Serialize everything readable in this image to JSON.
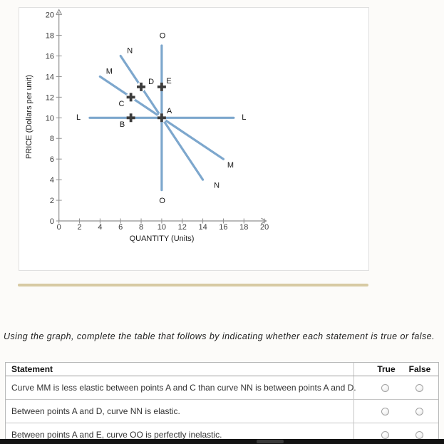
{
  "instruction": "Using the graph, complete the table that follows by indicating whether each statement is true or false.",
  "colors": {
    "curve": "#7da7cd",
    "axis": "#909090",
    "marker": "#3b3b3b",
    "tick_text": "#3c3c3c",
    "label_text": "#141414",
    "divider_tan": "#d7caa3",
    "bottom_bar": "#131313"
  },
  "chart_data": {
    "type": "line",
    "title": "",
    "xlabel": "QUANTITY (Units)",
    "ylabel": "PRICE (Dollars per unit)",
    "xlim": [
      0,
      20
    ],
    "ylim": [
      0,
      20
    ],
    "tick_step": 2,
    "grid": false,
    "legend": "none",
    "series": [
      {
        "name": "L",
        "points": [
          [
            3,
            10
          ],
          [
            17,
            10
          ]
        ],
        "labels": [
          {
            "text": "L",
            "x": 1.9,
            "y": 10.1
          },
          {
            "text": "L",
            "x": 18.0,
            "y": 10.1
          }
        ]
      },
      {
        "name": "M",
        "points": [
          [
            4,
            14
          ],
          [
            16,
            6
          ]
        ],
        "labels": [
          {
            "text": "M",
            "x": 4.9,
            "y": 14.55
          },
          {
            "text": "M",
            "x": 16.7,
            "y": 5.45
          }
        ]
      },
      {
        "name": "N",
        "points": [
          [
            6,
            16
          ],
          [
            14,
            4
          ]
        ],
        "labels": [
          {
            "text": "N",
            "x": 6.9,
            "y": 16.55
          },
          {
            "text": "N",
            "x": 15.35,
            "y": 3.5
          }
        ]
      },
      {
        "name": "O",
        "points": [
          [
            10,
            3
          ],
          [
            10,
            17
          ]
        ],
        "labels": [
          {
            "text": "O",
            "x": 10.08,
            "y": 18.0
          },
          {
            "text": "O",
            "x": 10.05,
            "y": 2.0
          }
        ]
      }
    ],
    "markers": [
      {
        "label": "A",
        "x": 10,
        "y": 10,
        "label_pos": [
          10.74,
          10.71
        ]
      },
      {
        "label": "B",
        "x": 7,
        "y": 10,
        "label_pos": [
          6.16,
          9.4
        ]
      },
      {
        "label": "C",
        "x": 7,
        "y": 12,
        "label_pos": [
          6.09,
          11.4
        ]
      },
      {
        "label": "D",
        "x": 8,
        "y": 13,
        "label_pos": [
          8.97,
          13.55
        ]
      },
      {
        "label": "E",
        "x": 10,
        "y": 13,
        "label_pos": [
          10.7,
          13.6
        ]
      }
    ]
  },
  "table": {
    "headers": {
      "statement": "Statement",
      "true": "True",
      "false": "False"
    },
    "rows": [
      {
        "statement": "Curve MM is less elastic between points A and C than curve NN is between points A and D."
      },
      {
        "statement": "Between points A and D, curve NN is elastic."
      },
      {
        "statement": "Between points A and E, curve OO is perfectly inelastic."
      }
    ]
  }
}
